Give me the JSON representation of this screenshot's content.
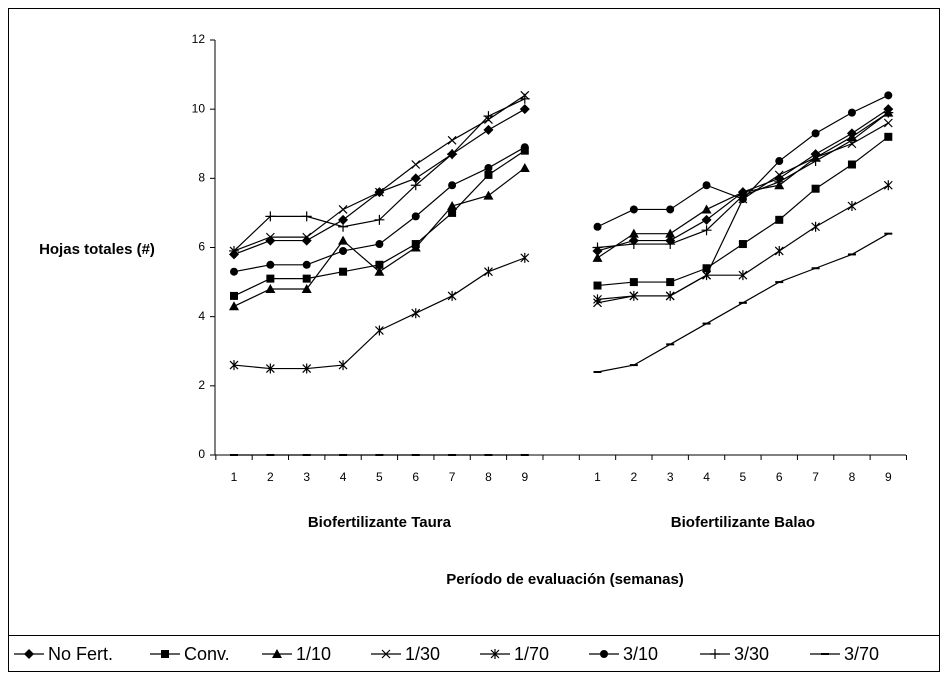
{
  "chart_data": {
    "type": "line",
    "ylabel": "Hojas totales (#)",
    "xlabel": "Período de evaluación (semanas)",
    "groups": [
      {
        "label": "Biofertilizante Taura",
        "start": 0,
        "end": 8
      },
      {
        "label": "Biofertilizante Balao",
        "start": 10,
        "end": 18
      }
    ],
    "categories": [
      "1",
      "2",
      "3",
      "4",
      "5",
      "6",
      "7",
      "8",
      "9",
      null,
      "1",
      "2",
      "3",
      "4",
      "5",
      "6",
      "7",
      "8",
      "9"
    ],
    "ylim": [
      0,
      12
    ],
    "yticks": [
      0,
      2,
      4,
      6,
      8,
      10,
      12
    ],
    "grid": false,
    "legend": "bottom",
    "series": [
      {
        "name": "No Fert.",
        "color": "#000000",
        "marker": "diamond",
        "values": [
          5.8,
          6.2,
          6.2,
          6.8,
          7.6,
          8.0,
          8.7,
          9.4,
          10.0,
          null,
          5.9,
          6.2,
          6.2,
          6.8,
          7.6,
          8.0,
          8.7,
          9.3,
          10.0
        ]
      },
      {
        "name": "Conv.",
        "color": "#000000",
        "marker": "square",
        "values": [
          4.6,
          5.1,
          5.1,
          5.3,
          5.5,
          6.1,
          7.0,
          8.1,
          8.8,
          null,
          4.9,
          5.0,
          5.0,
          5.4,
          6.1,
          6.8,
          7.7,
          8.4,
          9.2
        ]
      },
      {
        "name": "1/10",
        "color": "#000000",
        "marker": "triangle",
        "values": [
          4.3,
          4.8,
          4.8,
          6.2,
          5.3,
          6.0,
          7.2,
          7.5,
          8.3,
          null,
          5.7,
          6.4,
          6.4,
          7.1,
          7.6,
          7.8,
          8.6,
          9.2,
          9.9
        ]
      },
      {
        "name": "1/30",
        "color": "#000000",
        "marker": "x",
        "values": [
          5.9,
          6.3,
          6.3,
          7.1,
          7.6,
          8.4,
          9.1,
          9.7,
          10.4,
          null,
          4.4,
          4.6,
          4.6,
          5.2,
          7.4,
          8.1,
          8.6,
          9.0,
          9.6
        ]
      },
      {
        "name": "1/70",
        "color": "#000000",
        "marker": "asterisk",
        "values": [
          2.6,
          2.5,
          2.5,
          2.6,
          3.6,
          4.1,
          4.6,
          5.3,
          5.7,
          null,
          4.5,
          4.6,
          4.6,
          5.2,
          5.2,
          5.9,
          6.6,
          7.2,
          7.8
        ]
      },
      {
        "name": "3/10",
        "color": "#000000",
        "marker": "circle",
        "values": [
          5.3,
          5.5,
          5.5,
          5.9,
          6.1,
          6.9,
          7.8,
          8.3,
          8.9,
          null,
          6.6,
          7.1,
          7.1,
          7.8,
          7.4,
          8.5,
          9.3,
          9.9,
          10.4
        ]
      },
      {
        "name": "3/30",
        "color": "#000000",
        "marker": "plus",
        "values": [
          5.9,
          6.9,
          6.9,
          6.6,
          6.8,
          7.8,
          8.7,
          9.8,
          10.3,
          null,
          6.0,
          6.1,
          6.1,
          6.5,
          7.5,
          7.9,
          8.5,
          9.1,
          9.9
        ]
      },
      {
        "name": "3/70",
        "color": "#000000",
        "marker": "dash",
        "values": [
          0,
          0,
          0,
          0,
          0,
          0,
          0,
          0,
          0,
          null,
          2.4,
          2.6,
          3.2,
          3.8,
          4.4,
          5.0,
          5.4,
          5.8,
          6.4
        ]
      }
    ]
  }
}
